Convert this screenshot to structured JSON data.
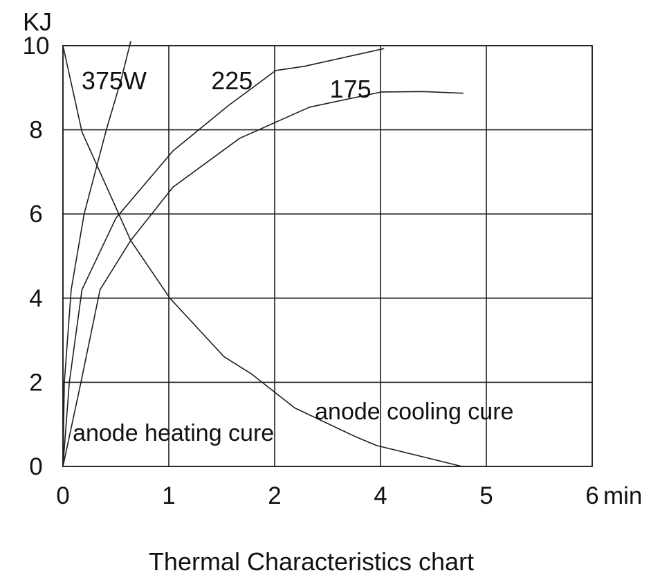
{
  "chart_data": {
    "type": "line",
    "title": "Thermal Characteristics chart",
    "line_color": "#1d1d1d",
    "grid": true,
    "legend_position": "none",
    "y_axis": {
      "unit_label": "KJ",
      "tick_labels": [
        "10",
        "8",
        "6",
        "4",
        "2",
        "0"
      ],
      "tick_values": [
        10,
        8,
        6,
        4,
        2,
        0
      ],
      "range": [
        0,
        10
      ]
    },
    "x_axis": {
      "unit_label": "min",
      "tick_labels": [
        "0",
        "1",
        "2",
        "4",
        "5",
        "6"
      ],
      "gridline_positions": [
        0,
        1,
        2,
        3,
        4,
        5
      ]
    },
    "series": [
      {
        "name": "anode heating curve 375W",
        "label": "375W",
        "points": [
          [
            0,
            0
          ],
          [
            0.013,
            2
          ],
          [
            0.078,
            4.2
          ],
          [
            0.2,
            6.0
          ],
          [
            0.41,
            8.0
          ],
          [
            0.55,
            9.2
          ],
          [
            0.64,
            10.1
          ]
        ]
      },
      {
        "name": "anode heating curve 225",
        "label": "225",
        "points": [
          [
            0,
            0
          ],
          [
            0.06,
            2.0
          ],
          [
            0.18,
            4.2
          ],
          [
            0.5,
            5.9
          ],
          [
            1.04,
            7.5
          ],
          [
            1.56,
            8.57
          ],
          [
            2.01,
            9.41
          ],
          [
            2.28,
            9.51
          ],
          [
            3.03,
            9.93
          ]
        ]
      },
      {
        "name": "anode heating curve 175",
        "label": "175",
        "points": [
          [
            0,
            0
          ],
          [
            0.17,
            2.0
          ],
          [
            0.35,
            4.2
          ],
          [
            0.64,
            5.37
          ],
          [
            1.04,
            6.64
          ],
          [
            1.67,
            7.8
          ],
          [
            2.33,
            8.54
          ],
          [
            3.01,
            8.9
          ],
          [
            3.4,
            8.91
          ],
          [
            3.78,
            8.87
          ]
        ]
      },
      {
        "name": "anode cooling curve",
        "label": "anode cooling cure",
        "points": [
          [
            0,
            10
          ],
          [
            0.18,
            7.95
          ],
          [
            0.64,
            5.37
          ],
          [
            1.01,
            4.0
          ],
          [
            1.52,
            2.61
          ],
          [
            1.78,
            2.2
          ],
          [
            2.19,
            1.39
          ],
          [
            2.76,
            0.71
          ],
          [
            2.96,
            0.5
          ],
          [
            3.77,
            0
          ]
        ]
      }
    ],
    "annotations": [
      {
        "text": "375W",
        "x": 0.176,
        "y_kj": 8.96
      },
      {
        "text": "225",
        "x": 1.4,
        "y_kj": 8.96
      },
      {
        "text": "175",
        "x": 2.52,
        "y_kj": 8.77
      },
      {
        "text": "anode heating cure",
        "x": 0.092,
        "y_kj": 0.61
      },
      {
        "text": "anode cooling cure",
        "x": 2.38,
        "y_kj": 1.12
      }
    ]
  }
}
